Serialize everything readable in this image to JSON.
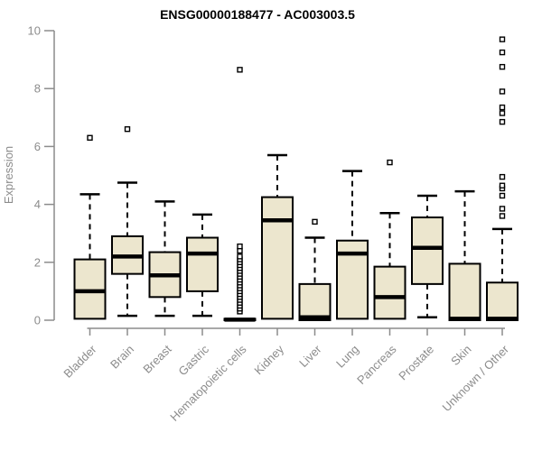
{
  "chart_data": {
    "type": "boxplot",
    "title": "ENSG00000188477 - AC003003.5",
    "ylabel": "Expression",
    "xlabel": "",
    "ylim": [
      0,
      10
    ],
    "yticks": [
      0,
      2,
      4,
      6,
      8,
      10
    ],
    "grid": false,
    "legend": "none",
    "categories": [
      "Bladder",
      "Brain",
      "Breast",
      "Gastric",
      "Hematopoietic cells",
      "Kidney",
      "Liver",
      "Lung",
      "Pancreas",
      "Prostate",
      "Skin",
      "Unknown / Other"
    ],
    "boxes": [
      {
        "category": "Bladder",
        "whisker_low": 0.05,
        "q1": 0.05,
        "median": 1.0,
        "q3": 2.1,
        "whisker_high": 4.35,
        "outliers": [
          6.3
        ]
      },
      {
        "category": "Brain",
        "whisker_low": 0.15,
        "q1": 1.6,
        "median": 2.2,
        "q3": 2.9,
        "whisker_high": 4.75,
        "outliers": [
          6.6
        ]
      },
      {
        "category": "Breast",
        "whisker_low": 0.15,
        "q1": 0.8,
        "median": 1.55,
        "q3": 2.35,
        "whisker_high": 4.1,
        "outliers": []
      },
      {
        "category": "Gastric",
        "whisker_low": 0.15,
        "q1": 1.0,
        "median": 2.3,
        "q3": 2.85,
        "whisker_high": 3.65,
        "outliers": []
      },
      {
        "category": "Hematopoietic cells",
        "whisker_low": 0,
        "q1": 0,
        "median": 0.02,
        "q3": 0.05,
        "whisker_high": 0.05,
        "outliers": [
          0.3,
          0.4,
          0.5,
          0.6,
          0.7,
          0.8,
          0.9,
          1.0,
          1.1,
          1.2,
          1.3,
          1.4,
          1.5,
          1.6,
          1.7,
          1.8,
          1.9,
          2.0,
          2.1,
          2.2,
          2.4,
          2.55,
          8.65
        ]
      },
      {
        "category": "Kidney",
        "whisker_low": 0.05,
        "q1": 0.05,
        "median": 3.45,
        "q3": 4.25,
        "whisker_high": 5.7,
        "outliers": []
      },
      {
        "category": "Liver",
        "whisker_low": 0,
        "q1": 0,
        "median": 0.1,
        "q3": 1.25,
        "whisker_high": 2.85,
        "outliers": [
          3.4
        ]
      },
      {
        "category": "Lung",
        "whisker_low": 0.05,
        "q1": 0.05,
        "median": 2.3,
        "q3": 2.75,
        "whisker_high": 5.15,
        "outliers": []
      },
      {
        "category": "Pancreas",
        "whisker_low": 0.05,
        "q1": 0.05,
        "median": 0.8,
        "q3": 1.85,
        "whisker_high": 3.7,
        "outliers": [
          5.45
        ]
      },
      {
        "category": "Prostate",
        "whisker_low": 0.1,
        "q1": 1.25,
        "median": 2.5,
        "q3": 3.55,
        "whisker_high": 4.3,
        "outliers": []
      },
      {
        "category": "Skin",
        "whisker_low": 0,
        "q1": 0,
        "median": 0.05,
        "q3": 1.95,
        "whisker_high": 4.45,
        "outliers": []
      },
      {
        "category": "Unknown / Other",
        "whisker_low": 0,
        "q1": 0,
        "median": 0.05,
        "q3": 1.3,
        "whisker_high": 3.15,
        "outliers": [
          3.6,
          3.85,
          4.3,
          4.55,
          4.65,
          4.95,
          6.85,
          7.15,
          7.35,
          7.9,
          8.75,
          9.25,
          9.7
        ]
      }
    ],
    "colors": {
      "box_fill": "#ECE6CE",
      "box_stroke": "#000000",
      "median": "#000000",
      "whisker": "#000000",
      "outlier_stroke": "#000000",
      "outlier_fill": "#ffffff",
      "axis": "#8c8c8c",
      "tick_label": "#8c8c8c",
      "title": "#000000",
      "background": "#ffffff"
    }
  }
}
